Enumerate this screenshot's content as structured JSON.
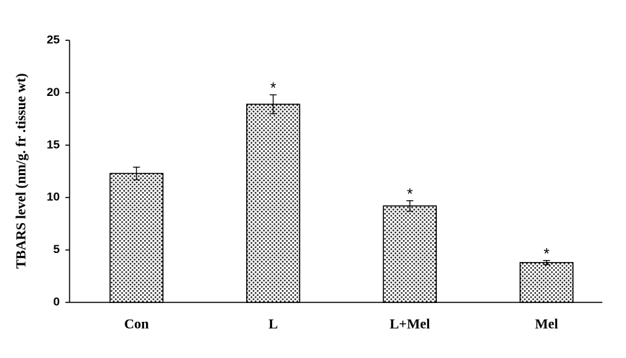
{
  "chart_data": {
    "type": "bar",
    "y_label": "TBARS level (nm/g. fr .tissue wt)",
    "categories": [
      "Con",
      "L",
      "L+Mel",
      "Mel"
    ],
    "values": [
      12.3,
      18.9,
      9.2,
      3.8
    ],
    "errors": [
      0.6,
      0.9,
      0.5,
      0.2
    ],
    "significance": [
      null,
      "*",
      "*",
      "*"
    ],
    "ylim": [
      0,
      25
    ],
    "yticks": [
      0,
      5,
      10,
      15,
      20,
      25
    ],
    "grid": false
  }
}
